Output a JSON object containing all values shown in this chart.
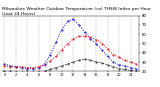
{
  "title": "Milwaukee Weather Outdoor Temperature (vs) THSW Index per Hour (Last 24 Hours)",
  "hours": [
    0,
    1,
    2,
    3,
    4,
    5,
    6,
    7,
    8,
    9,
    10,
    11,
    12,
    13,
    14,
    15,
    16,
    17,
    18,
    19,
    20,
    21,
    22,
    23
  ],
  "temp": [
    26,
    25,
    25,
    25,
    24,
    24,
    25,
    27,
    31,
    36,
    43,
    50,
    55,
    58,
    58,
    57,
    54,
    50,
    44,
    38,
    35,
    32,
    30,
    28
  ],
  "thsw": [
    28,
    26,
    25,
    24,
    23,
    23,
    24,
    28,
    38,
    52,
    65,
    74,
    76,
    70,
    62,
    55,
    50,
    43,
    36,
    30,
    27,
    26,
    24,
    23
  ],
  "dew": [
    20,
    20,
    19,
    19,
    19,
    19,
    19,
    20,
    22,
    24,
    26,
    28,
    30,
    32,
    33,
    32,
    30,
    29,
    27,
    25,
    23,
    22,
    21,
    20
  ],
  "temp_color": "#dd0000",
  "thsw_color": "#0000dd",
  "dew_color": "#000000",
  "bg_color": "#ffffff",
  "grid_color": "#999999",
  "ylim": [
    20,
    80
  ],
  "ytick_vals": [
    20,
    30,
    40,
    50,
    60,
    70,
    80
  ],
  "ytick_labels": [
    "20",
    "30",
    "40",
    "50",
    "60",
    "70",
    "80"
  ],
  "title_fontsize": 3.2,
  "tick_fontsize": 2.8
}
